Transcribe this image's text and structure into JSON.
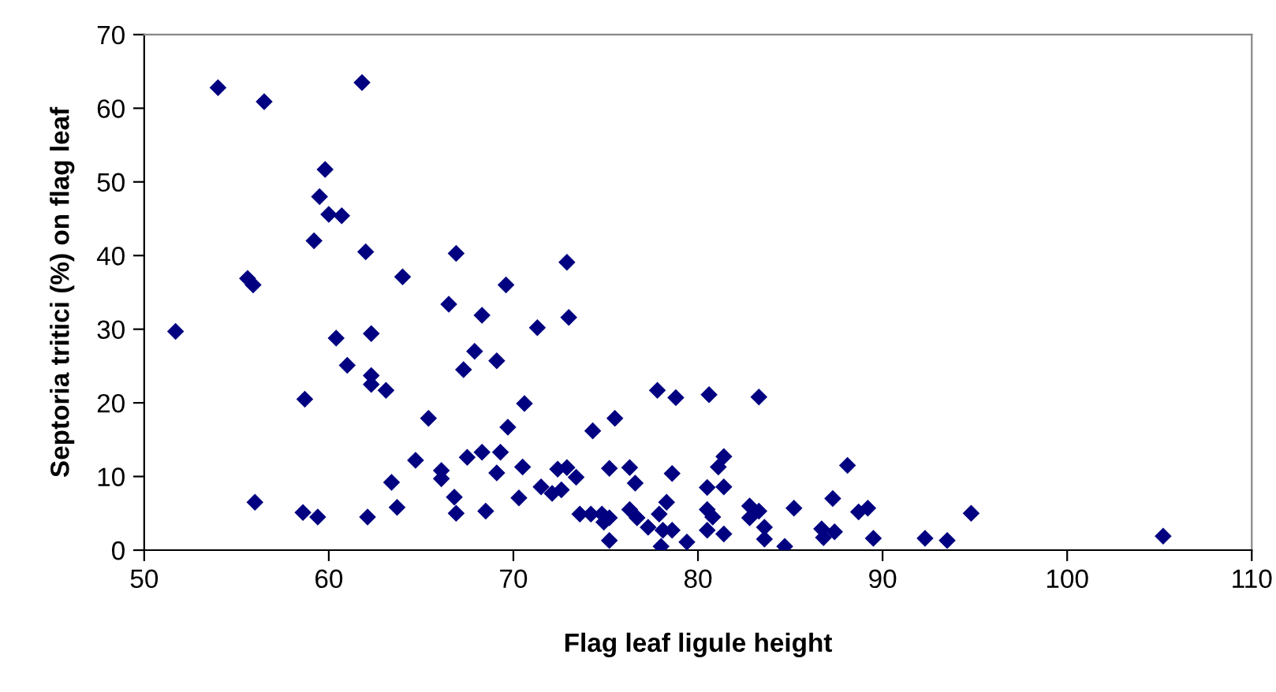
{
  "chart_data": {
    "type": "scatter",
    "xlabel": "Flag leaf ligule height",
    "ylabel": "Septoria tritici (%) on flag leaf",
    "xlim": [
      50,
      110
    ],
    "xticks": [
      50,
      60,
      70,
      80,
      90,
      100,
      110
    ],
    "ylim": [
      0,
      70
    ],
    "yticks": [
      0,
      10,
      20,
      30,
      40,
      50,
      60,
      70
    ],
    "grid": false,
    "legend": false,
    "marker": "diamond",
    "series": [
      {
        "color": "#000080",
        "x": [
          54.0,
          56.5,
          61.8,
          59.8,
          59.5,
          60.0,
          60.7,
          59.2,
          62.0,
          66.9,
          55.6,
          55.9,
          64.0,
          66.5,
          68.3,
          69.6,
          51.7,
          60.4,
          62.3,
          61.0,
          62.3,
          62.3,
          63.1,
          58.7,
          65.4,
          67.9,
          67.3,
          69.1,
          64.7,
          66.1,
          66.1,
          63.4,
          67.5,
          68.3,
          69.3,
          69.1,
          69.7,
          63.7,
          66.8,
          66.9,
          68.5,
          56.0,
          58.6,
          59.4,
          62.1,
          72.9,
          73.0,
          71.3,
          70.6,
          70.5,
          70.3,
          77.8,
          78.8,
          80.6,
          83.3,
          74.3,
          75.5,
          81.4,
          81.1,
          88.1,
          72.4,
          72.9,
          73.4,
          71.5,
          72.1,
          72.6,
          75.2,
          76.3,
          76.6,
          78.6,
          80.5,
          81.4,
          73.6,
          74.2,
          74.8,
          75.2,
          74.9,
          75.2,
          76.3,
          76.7,
          77.3,
          77.9,
          78.3,
          78.1,
          78.0,
          78.6,
          79.4,
          80.5,
          80.8,
          80.5,
          81.4,
          82.8,
          83.3,
          82.8,
          83.6,
          83.6,
          84.7,
          85.2,
          87.3,
          86.7,
          87.4,
          86.8,
          88.7,
          89.2,
          89.5,
          92.3,
          93.5,
          94.8,
          105.2
        ],
        "values": [
          62.8,
          60.9,
          63.5,
          51.7,
          48.0,
          45.6,
          45.4,
          42.0,
          40.5,
          40.3,
          36.9,
          36.0,
          37.1,
          33.4,
          31.9,
          36.0,
          29.7,
          28.8,
          29.4,
          25.1,
          23.7,
          22.5,
          21.7,
          20.5,
          17.9,
          27.0,
          24.5,
          25.7,
          12.2,
          10.8,
          9.7,
          9.2,
          12.6,
          13.3,
          13.3,
          10.5,
          16.7,
          5.8,
          7.2,
          5.0,
          5.3,
          6.5,
          5.1,
          4.5,
          4.5,
          39.1,
          31.6,
          30.2,
          19.9,
          11.3,
          7.1,
          21.7,
          20.7,
          21.1,
          20.8,
          16.2,
          17.9,
          12.7,
          11.3,
          11.5,
          11.0,
          11.2,
          9.9,
          8.6,
          7.7,
          8.2,
          11.1,
          11.2,
          9.1,
          10.4,
          8.5,
          8.6,
          4.9,
          4.9,
          4.9,
          4.4,
          3.8,
          1.3,
          5.5,
          4.4,
          3.1,
          4.9,
          6.5,
          2.7,
          0.5,
          2.7,
          1.1,
          5.5,
          4.5,
          2.7,
          2.2,
          6.0,
          5.3,
          4.4,
          3.1,
          1.5,
          0.5,
          5.7,
          7.0,
          2.9,
          2.5,
          1.7,
          5.2,
          5.7,
          1.6,
          1.6,
          1.3,
          5.0,
          1.9
        ]
      }
    ]
  }
}
